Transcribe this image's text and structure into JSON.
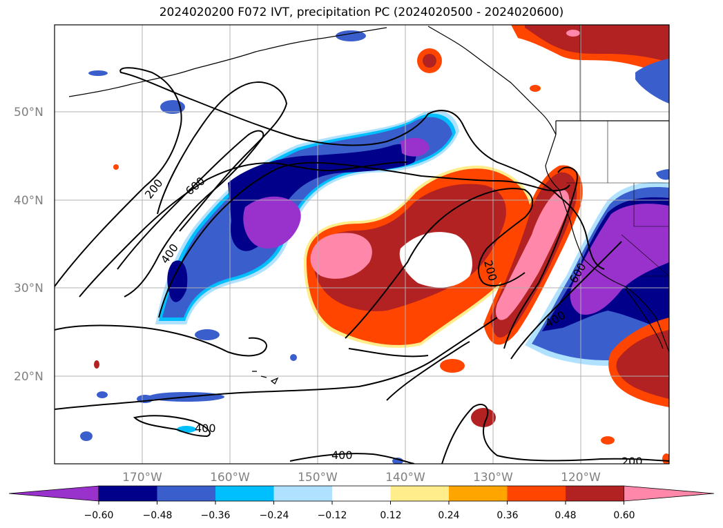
{
  "title": "2024020200 F072 IVT, precipitation PC (2024020500 - 2024020600)",
  "latitude_labels": [
    "50°N",
    "40°N",
    "30°N",
    "20°N"
  ],
  "longitude_labels": [
    "170°W",
    "160°W",
    "150°W",
    "140°W",
    "130°W",
    "120°W"
  ],
  "contour_labels": [
    "200",
    "600",
    "400",
    "200",
    "600",
    "400",
    "400",
    "400",
    "200"
  ],
  "colorbar": {
    "tick_labels": [
      "−0.60",
      "−0.48",
      "−0.36",
      "−0.24",
      "−0.12",
      "0.12",
      "0.24",
      "0.36",
      "0.48",
      "0.60"
    ],
    "colors": [
      "#9932cc",
      "#00008b",
      "#3a5fcd",
      "#00bfff",
      "#b0e2ff",
      "#ffffff",
      "#ffec8b",
      "#ffa500",
      "#ff4500",
      "#b22222",
      "#ff88aa"
    ]
  },
  "colors": {
    "ivt_contour": "#000000",
    "coastline": "#000000",
    "gridline": "#b0b0b0"
  }
}
